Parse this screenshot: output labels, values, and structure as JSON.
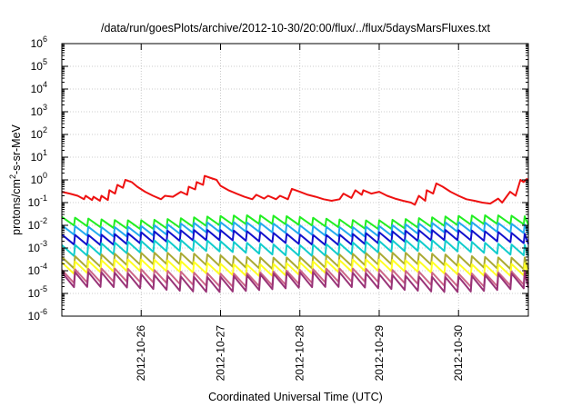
{
  "chart_data": {
    "type": "line",
    "title": "/data/run/goesPlots/archive/2012-10-30/20:00/flux/../flux/5daysMarsFluxes.txt",
    "xlabel": "Coordinated Universal Time (UTC)",
    "ylabel": "protons/cm²-s-sr-MeV",
    "y_scale": "log",
    "ylim": [
      1e-06,
      1000000.0
    ],
    "xlim": [
      2012.1025,
      2012.1030875
    ],
    "x_tick_labels": [
      "2012-10-26",
      "2012-10-27",
      "2012-10-28",
      "2012-10-29",
      "2012-10-30"
    ],
    "x_ticks_days": [
      26,
      27,
      28,
      29,
      30
    ],
    "x_range_days": [
      25.0,
      30.88
    ],
    "y_tick_labels": [
      {
        "base": "10",
        "exp": "-6"
      },
      {
        "base": "10",
        "exp": "-5"
      },
      {
        "base": "10",
        "exp": "-4"
      },
      {
        "base": "10",
        "exp": "-3"
      },
      {
        "base": "10",
        "exp": "-2"
      },
      {
        "base": "10",
        "exp": "-1"
      },
      {
        "base": "10",
        "exp": "0"
      },
      {
        "base": "10",
        "exp": "1"
      },
      {
        "base": "10",
        "exp": "2"
      },
      {
        "base": "10",
        "exp": "3"
      },
      {
        "base": "10",
        "exp": "4"
      },
      {
        "base": "10",
        "exp": "5"
      },
      {
        "base": "10",
        "exp": "6"
      }
    ],
    "grid": true,
    "sawtooth_period_days": 0.1667,
    "series": [
      {
        "color": "#ee1111",
        "points": [
          [
            25.0,
            0.3
          ],
          [
            25.1,
            0.25
          ],
          [
            25.2,
            0.2
          ],
          [
            25.28,
            0.14
          ],
          [
            25.3,
            0.2
          ],
          [
            25.38,
            0.13
          ],
          [
            25.4,
            0.18
          ],
          [
            25.48,
            0.12
          ],
          [
            25.5,
            0.2
          ],
          [
            25.58,
            0.13
          ],
          [
            25.6,
            0.35
          ],
          [
            25.67,
            0.25
          ],
          [
            25.7,
            0.6
          ],
          [
            25.77,
            0.45
          ],
          [
            25.8,
            1.0
          ],
          [
            25.88,
            0.8
          ],
          [
            25.95,
            0.5
          ],
          [
            26.05,
            0.3
          ],
          [
            26.15,
            0.2
          ],
          [
            26.25,
            0.14
          ],
          [
            26.3,
            0.2
          ],
          [
            26.4,
            0.18
          ],
          [
            26.5,
            0.3
          ],
          [
            26.58,
            0.22
          ],
          [
            26.6,
            0.5
          ],
          [
            26.68,
            0.38
          ],
          [
            26.7,
            0.8
          ],
          [
            26.78,
            0.6
          ],
          [
            26.8,
            1.5
          ],
          [
            26.88,
            1.2
          ],
          [
            26.95,
            1.0
          ],
          [
            27.0,
            0.55
          ],
          [
            27.1,
            0.35
          ],
          [
            27.2,
            0.25
          ],
          [
            27.3,
            0.18
          ],
          [
            27.4,
            0.14
          ],
          [
            27.45,
            0.22
          ],
          [
            27.55,
            0.15
          ],
          [
            27.6,
            0.2
          ],
          [
            27.7,
            0.14
          ],
          [
            27.75,
            0.2
          ],
          [
            27.85,
            0.14
          ],
          [
            27.9,
            0.4
          ],
          [
            28.0,
            0.3
          ],
          [
            28.1,
            0.22
          ],
          [
            28.2,
            0.18
          ],
          [
            28.3,
            0.14
          ],
          [
            28.4,
            0.12
          ],
          [
            28.5,
            0.14
          ],
          [
            28.55,
            0.25
          ],
          [
            28.65,
            0.16
          ],
          [
            28.7,
            0.35
          ],
          [
            28.78,
            0.22
          ],
          [
            28.8,
            0.35
          ],
          [
            28.9,
            0.25
          ],
          [
            29.0,
            0.3
          ],
          [
            29.1,
            0.2
          ],
          [
            29.2,
            0.15
          ],
          [
            29.3,
            0.12
          ],
          [
            29.4,
            0.1
          ],
          [
            29.45,
            0.08
          ],
          [
            29.5,
            0.2
          ],
          [
            29.58,
            0.12
          ],
          [
            29.6,
            0.35
          ],
          [
            29.68,
            0.25
          ],
          [
            29.72,
            0.7
          ],
          [
            29.8,
            0.5
          ],
          [
            29.9,
            0.3
          ],
          [
            30.0,
            0.2
          ],
          [
            30.1,
            0.14
          ],
          [
            30.2,
            0.12
          ],
          [
            30.3,
            0.1
          ],
          [
            30.4,
            0.09
          ],
          [
            30.5,
            0.15
          ],
          [
            30.55,
            0.1
          ],
          [
            30.65,
            0.3
          ],
          [
            30.72,
            0.2
          ],
          [
            30.78,
            1.0
          ],
          [
            30.82,
            0.8
          ],
          [
            30.86,
            1.1
          ],
          [
            30.88,
            0.9
          ]
        ]
      },
      {
        "color": "#22ee22",
        "peak": 0.022,
        "ratio": 2.4
      },
      {
        "color": "#22aaee",
        "peak": 0.011,
        "ratio": 2.6
      },
      {
        "color": "#1111cc",
        "peak": 0.005,
        "ratio": 2.8
      },
      {
        "color": "#11cccc",
        "peak": 0.0018,
        "ratio": 3.0
      },
      {
        "color": "#aaaa33",
        "peak": 0.0005,
        "ratio": 3.2
      },
      {
        "color": "#ffff22",
        "peak": 0.00025,
        "ratio": 3.2
      },
      {
        "color": "#cc6688",
        "peak": 0.0001,
        "ratio": 3.8
      },
      {
        "color": "#993377",
        "peak": 7e-05,
        "ratio": 4.5
      }
    ]
  }
}
